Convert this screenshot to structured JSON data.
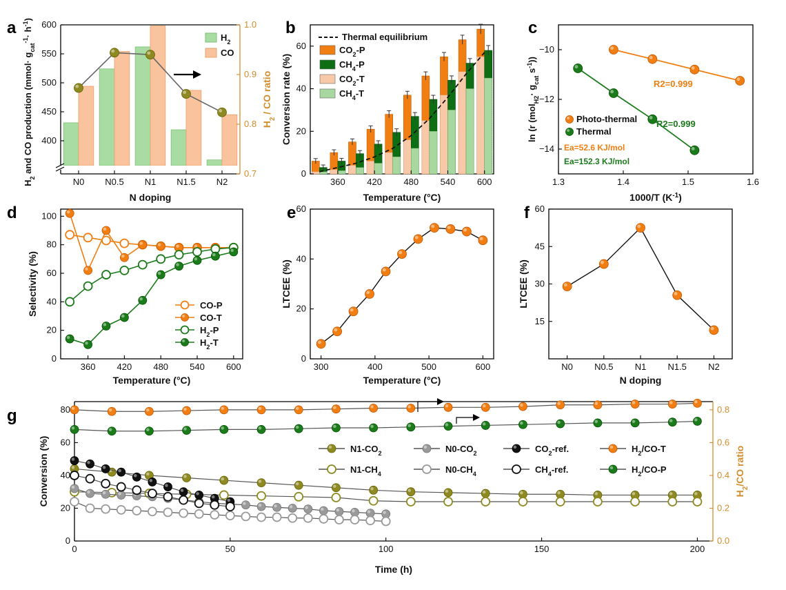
{
  "colors": {
    "h2_green_light": "#a9dca3",
    "co_orange_light": "#f9c49d",
    "orange": "#f07e12",
    "green": "#1b7b1b",
    "green_dark": "#0e6e14",
    "olive": "#8e8a21",
    "gray": "#9a9a9a",
    "black": "#111111",
    "ratio_axis": "#d38d2c",
    "line_gray": "#777777",
    "peach_ct": "#f7c9a8",
    "lightgreen_cht": "#a8d89f"
  },
  "chart_data": [
    {
      "panel": "a",
      "type": "bar",
      "categories": [
        "N0",
        "N0.5",
        "N1",
        "N1.5",
        "N2"
      ],
      "xlabel": "N doping",
      "ylabel": "H2 and CO production (mmol· gcat-1· h-1)",
      "ylabel_parts": {
        "main": "H",
        "sub1": "2",
        "mid": " and CO production (mmol· g",
        "sub2": "cat",
        "sup": "-1",
        "end": "· h",
        "sup2": "-1",
        "close": ")"
      },
      "ylim": [
        350,
        600
      ],
      "ybreak": true,
      "yticks": [
        400,
        450,
        500,
        550,
        600
      ],
      "series": [
        {
          "name": "H2",
          "name_main": "H",
          "name_sub": "2",
          "values": [
            431,
            524,
            562,
            419,
            367
          ]
        },
        {
          "name": "CO",
          "name_main": "CO",
          "name_sub": "",
          "values": [
            494,
            554,
            598,
            487,
            445
          ]
        }
      ],
      "y2label": "H2 / CO ratio",
      "y2label_parts": {
        "main": "H",
        "sub": "2",
        "rest": " / CO ratio"
      },
      "y2lim": [
        0.7,
        1.0
      ],
      "y2ticks": [
        0.7,
        0.8,
        0.9,
        1.0
      ],
      "ratio": [
        0.873,
        0.944,
        0.94,
        0.861,
        0.824
      ],
      "tick_labels_y": [
        "400",
        "450",
        "500",
        "550",
        "600"
      ],
      "tick_labels_y2": [
        "0.7",
        "0.8",
        "0.9",
        "1.0"
      ]
    },
    {
      "panel": "b",
      "type": "bar",
      "categories": [
        330,
        360,
        390,
        420,
        450,
        480,
        510,
        540,
        570,
        600
      ],
      "xticks": [
        360,
        420,
        480,
        540,
        600
      ],
      "xlabel": "Temperature (°C)",
      "ylabel": "Conversion rate (%)",
      "ylim": [
        0,
        70
      ],
      "yticks": [
        0,
        20,
        40,
        60
      ],
      "series": [
        {
          "name": "CO2-P",
          "name_main": "CO",
          "name_sub": "2",
          "name_rest": "-P",
          "values": [
            6,
            10,
            15,
            21,
            28,
            37,
            46,
            55,
            63,
            68
          ]
        },
        {
          "name": "CH4-P",
          "name_main": "CH",
          "name_sub": "4",
          "name_rest": "-P",
          "values": [
            3,
            6,
            9.5,
            14,
            19.5,
            27,
            35,
            44,
            52,
            58
          ]
        },
        {
          "name": "CO2-T",
          "name_main": "CO",
          "name_sub": "2",
          "name_rest": "-T",
          "values": [
            1,
            2,
            4,
            6,
            10,
            16,
            25,
            37,
            48,
            55
          ]
        },
        {
          "name": "CH4-T",
          "name_main": "CH",
          "name_sub": "4",
          "name_rest": "-T",
          "values": [
            1,
            1.5,
            3,
            5,
            8,
            12,
            20,
            30,
            40,
            45
          ]
        }
      ],
      "equilibrium": {
        "name": "Thermal equilibrium",
        "x": [
          330,
          360,
          390,
          420,
          450,
          480,
          510,
          540,
          570,
          600
        ],
        "y": [
          1,
          3,
          5,
          8,
          12,
          18,
          26,
          36,
          47,
          57
        ]
      }
    },
    {
      "panel": "c",
      "type": "scatter",
      "xlabel": "1000/T (K-1)",
      "ylabel": "ln (r (molH2· gcat s-1))",
      "xlim": [
        1.3,
        1.6
      ],
      "xticks": [
        1.3,
        1.4,
        1.5,
        1.6
      ],
      "xtick_labels": [
        "1.3",
        "1.4",
        "1.5",
        "1.6"
      ],
      "ylim": [
        -15,
        -9
      ],
      "yticks": [
        -10,
        -12,
        -14
      ],
      "ytick_labels": [
        "−10",
        "−12",
        "−14"
      ],
      "series": [
        {
          "name": "Photo-thermal",
          "x": [
            1.385,
            1.445,
            1.51,
            1.58
          ],
          "y": [
            -10.0,
            -10.38,
            -10.8,
            -11.25
          ],
          "r2": "R2=0.999",
          "ea": "Ea=52.6   KJ/mol"
        },
        {
          "name": "Thermal",
          "x": [
            1.33,
            1.385,
            1.445,
            1.51
          ],
          "y": [
            -10.75,
            -11.75,
            -12.8,
            -14.05
          ],
          "r2": "R2=0.999",
          "ea": "Ea=152.3 KJ/mol"
        }
      ]
    },
    {
      "panel": "d",
      "type": "line",
      "xlabel": "Temperature (°C)",
      "ylabel": "Selectivity (%)",
      "x": [
        330,
        360,
        390,
        420,
        450,
        480,
        510,
        540,
        570,
        600
      ],
      "xticks": [
        360,
        420,
        480,
        540,
        600
      ],
      "ylim": [
        0,
        105
      ],
      "yticks": [
        0,
        20,
        40,
        60,
        80,
        100
      ],
      "series": [
        {
          "name": "CO-P",
          "values": [
            87,
            85,
            83,
            81,
            80,
            79,
            78,
            78,
            78,
            78
          ]
        },
        {
          "name": "CO-T",
          "values": [
            102,
            62,
            90,
            71,
            80,
            79,
            78,
            78,
            78,
            78
          ]
        },
        {
          "name": "H2-P",
          "name_main": "H",
          "name_sub": "2",
          "name_rest": "-P",
          "values": [
            40,
            51,
            59,
            62,
            66,
            70,
            73,
            75,
            77,
            78
          ]
        },
        {
          "name": "H2-T",
          "name_main": "H",
          "name_sub": "2",
          "name_rest": "-T",
          "values": [
            14,
            10,
            23,
            29,
            41,
            59,
            65,
            69,
            72,
            75
          ]
        }
      ]
    },
    {
      "panel": "e",
      "type": "line",
      "xlabel": "Temperature (°C)",
      "ylabel": "LTCEE (%)",
      "x": [
        300,
        330,
        360,
        390,
        420,
        450,
        480,
        510,
        540,
        570,
        600
      ],
      "values": [
        6,
        11,
        19,
        26,
        35,
        42,
        48,
        52.5,
        52,
        51,
        47.5
      ],
      "xticks": [
        300,
        400,
        500,
        600
      ],
      "ylim": [
        0,
        60
      ],
      "yticks": [
        0,
        20,
        40,
        60
      ]
    },
    {
      "panel": "f",
      "type": "line",
      "xlabel": "N doping",
      "ylabel": "LTCEE (%)",
      "categories": [
        "N0",
        "N0.5",
        "N1",
        "N1.5",
        "N2"
      ],
      "values": [
        29,
        38,
        52.5,
        25.5,
        11.5
      ],
      "ylim": [
        0,
        60
      ],
      "yticks": [
        15,
        30,
        45,
        60
      ]
    },
    {
      "panel": "g",
      "type": "line",
      "xlabel": "Time (h)",
      "ylabel": "Conversion (%)",
      "xlim": [
        0,
        205
      ],
      "xticks": [
        0,
        50,
        100,
        150,
        200
      ],
      "ylim": [
        0,
        85
      ],
      "yticks": [
        0,
        20,
        40,
        60,
        80
      ],
      "y2label": "H2/CO ratio",
      "y2label_parts": {
        "main": "H",
        "sub": "2",
        "rest": "/CO ratio"
      },
      "y2lim": [
        0,
        0.85
      ],
      "y2ticks": [
        0.0,
        0.2,
        0.4,
        0.6,
        0.8
      ],
      "y2tick_labels": [
        "0.0",
        "0.2",
        "0.4",
        "0.6",
        "0.8"
      ],
      "series": [
        {
          "name": "N1-CO2",
          "name_main": "N1-CO",
          "name_sub": "2",
          "style": "filled",
          "color_key": "olive",
          "axis": "y",
          "x": [
            0,
            12,
            24,
            36,
            48,
            60,
            72,
            84,
            96,
            108,
            120,
            132,
            144,
            156,
            168,
            180,
            192,
            200
          ],
          "y": [
            44,
            42,
            40,
            38.5,
            37,
            35.5,
            34,
            32.5,
            31,
            30,
            29.5,
            29,
            28.5,
            28.5,
            28,
            28,
            28,
            28
          ]
        },
        {
          "name": "N1-CH4",
          "name_main": "N1-CH",
          "name_sub": "4",
          "style": "open",
          "color_key": "olive",
          "axis": "y",
          "x": [
            0,
            12,
            24,
            36,
            48,
            60,
            72,
            84,
            96,
            108,
            120,
            132,
            144,
            156,
            168,
            180,
            192,
            200
          ],
          "y": [
            30,
            29.5,
            29,
            28.5,
            28,
            27.5,
            27,
            26.5,
            24.5,
            24,
            24,
            24,
            24,
            24,
            24,
            24,
            24,
            24
          ]
        },
        {
          "name": "N0-CO2",
          "name_main": "N0-CO",
          "name_sub": "2",
          "style": "filled",
          "color_key": "gray",
          "axis": "y",
          "x": [
            0,
            5,
            10,
            15,
            20,
            25,
            30,
            35,
            40,
            45,
            50,
            55,
            60,
            65,
            70,
            75,
            80,
            85,
            90,
            95,
            100
          ],
          "y": [
            32,
            29,
            28.5,
            28,
            27.5,
            27,
            26,
            25,
            24,
            23,
            22.5,
            22,
            21,
            20.5,
            20,
            19.5,
            18.5,
            18,
            17.5,
            17,
            16.5
          ]
        },
        {
          "name": "N0-CH4",
          "name_main": "N0-CH",
          "name_sub": "4",
          "style": "open",
          "color_key": "gray",
          "axis": "y",
          "x": [
            0,
            5,
            10,
            15,
            20,
            25,
            30,
            35,
            40,
            45,
            50,
            55,
            60,
            65,
            70,
            75,
            80,
            85,
            90,
            95,
            100
          ],
          "y": [
            24,
            20,
            19.5,
            19,
            18.5,
            18,
            17.5,
            17,
            16.5,
            16,
            15.5,
            15,
            14.5,
            14.5,
            14,
            14,
            13.5,
            13,
            13,
            12.5,
            12
          ]
        },
        {
          "name": "CO2-ref.",
          "name_main": "CO",
          "name_sub": "2",
          "name_rest": "-ref.",
          "style": "filled",
          "color_key": "black",
          "axis": "y",
          "x": [
            0,
            5,
            10,
            15,
            20,
            25,
            30,
            35,
            40,
            45,
            50
          ],
          "y": [
            49,
            47,
            44,
            42,
            39,
            36,
            33,
            30,
            28,
            26,
            24
          ]
        },
        {
          "name": "CH4-ref.",
          "name_main": "CH",
          "name_sub": "4",
          "name_rest": "-ref.",
          "style": "open",
          "color_key": "black",
          "axis": "y",
          "x": [
            0,
            5,
            10,
            15,
            20,
            25,
            30,
            35,
            40,
            45,
            50
          ],
          "y": [
            40,
            38,
            35,
            33,
            31,
            29,
            27,
            25,
            23,
            22,
            21
          ]
        },
        {
          "name": "H2/CO-T",
          "name_main": "H",
          "name_sub": "2",
          "name_rest": "/CO-T",
          "style": "filled",
          "color_key": "orange",
          "axis": "y2",
          "x": [
            0,
            12,
            24,
            36,
            48,
            60,
            72,
            84,
            96,
            108,
            120,
            132,
            144,
            156,
            168,
            180,
            192,
            200
          ],
          "y": [
            0.8,
            0.79,
            0.79,
            0.795,
            0.8,
            0.8,
            0.8,
            0.805,
            0.81,
            0.81,
            0.815,
            0.815,
            0.82,
            0.83,
            0.83,
            0.835,
            0.835,
            0.84
          ]
        },
        {
          "name": "H2/CO-P",
          "name_main": "H",
          "name_sub": "2",
          "name_rest": "/CO-P",
          "style": "filled",
          "color_key": "green",
          "axis": "y2",
          "x": [
            0,
            12,
            24,
            36,
            48,
            60,
            72,
            84,
            96,
            108,
            120,
            132,
            144,
            156,
            168,
            180,
            192,
            200
          ],
          "y": [
            0.68,
            0.67,
            0.67,
            0.675,
            0.68,
            0.68,
            0.685,
            0.69,
            0.69,
            0.695,
            0.7,
            0.705,
            0.71,
            0.715,
            0.72,
            0.72,
            0.725,
            0.73
          ]
        }
      ]
    }
  ],
  "panel_labels": [
    "a",
    "b",
    "c",
    "d",
    "e",
    "f",
    "g"
  ]
}
